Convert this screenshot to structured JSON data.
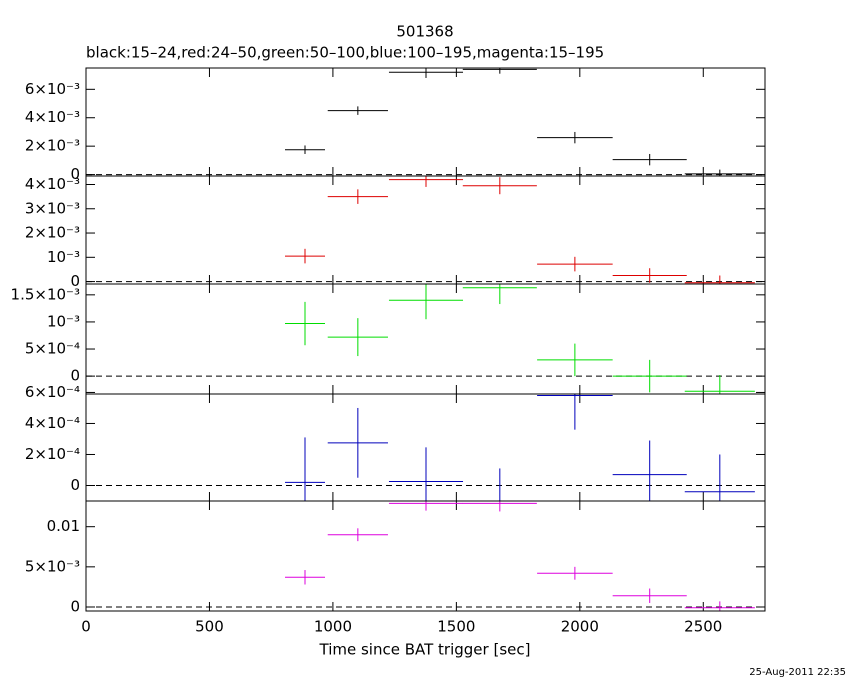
{
  "title": "501368",
  "subtitle": "black:15–24,red:24–50,green:50–100,blue:100–195,magenta:15–195",
  "x_label": "Time since BAT trigger [sec]",
  "timestamp": "25-Aug-2011 22:35",
  "chart_data": [
    {
      "type": "errorbar",
      "color": "#000000",
      "xlim": [
        0,
        2750
      ],
      "xticks": [
        0,
        500,
        1000,
        1500,
        2000,
        2500
      ],
      "x": [
        887,
        1101,
        1377,
        1676,
        1980,
        2283,
        2567
      ],
      "xerr": [
        81,
        122,
        150,
        150,
        153,
        150,
        142
      ],
      "values": [
        0.00175,
        0.0045,
        0.0072,
        0.0074,
        0.0026,
        0.00105,
        5e-05
      ],
      "yerr": [
        0.0003,
        0.0003,
        0.0004,
        0.0003,
        0.0004,
        0.0004,
        0.0003
      ],
      "ylim": [
        -0.0001,
        0.0075
      ],
      "yticks": [
        0,
        {
          "value": 0.002,
          "label": "2×10⁻³"
        },
        {
          "value": 0.004,
          "label": "4×10⁻³"
        },
        {
          "value": 0.006,
          "label": "6×10⁻³"
        }
      ]
    },
    {
      "type": "errorbar",
      "color": "#dd0000",
      "xlim": [
        0,
        2750
      ],
      "xticks": [
        0,
        500,
        1000,
        1500,
        2000,
        2500
      ],
      "x": [
        887,
        1101,
        1377,
        1676,
        1980,
        2283,
        2567
      ],
      "xerr": [
        81,
        122,
        150,
        150,
        153,
        150,
        142
      ],
      "values": [
        0.00105,
        0.0035,
        0.0042,
        0.00395,
        0.00072,
        0.00025,
        -5e-05
      ],
      "yerr": [
        0.0003,
        0.0003,
        0.0003,
        0.00035,
        0.0003,
        0.0003,
        0.0003
      ],
      "ylim": [
        -0.0001,
        0.00435
      ],
      "yticks": [
        0,
        {
          "value": 0.001,
          "label": "10⁻³"
        },
        {
          "value": 0.002,
          "label": "2×10⁻³"
        },
        {
          "value": 0.003,
          "label": "3×10⁻³"
        },
        {
          "value": 0.004,
          "label": "4×10⁻³"
        }
      ]
    },
    {
      "type": "errorbar",
      "color": "#00dd00",
      "xlim": [
        0,
        2750
      ],
      "xticks": [
        0,
        500,
        1000,
        1500,
        2000,
        2500
      ],
      "x": [
        887,
        1101,
        1377,
        1676,
        1980,
        2283,
        2567
      ],
      "xerr": [
        81,
        122,
        150,
        150,
        153,
        150,
        142
      ],
      "values": [
        0.00097,
        0.00072,
        0.0014,
        0.00163,
        0.0003,
        0.0,
        -0.00028
      ],
      "yerr": [
        0.0004,
        0.00035,
        0.00035,
        0.0003,
        0.0003,
        0.0003,
        0.0003
      ],
      "ylim": [
        -0.00033,
        0.0017
      ],
      "yticks": [
        0,
        {
          "value": 0.0005,
          "label": "5×10⁻⁴"
        },
        {
          "value": 0.001,
          "label": "10⁻³"
        },
        {
          "value": 0.0015,
          "label": "1.5×10⁻³"
        }
      ]
    },
    {
      "type": "errorbar",
      "color": "#0000bb",
      "xlim": [
        0,
        2750
      ],
      "xticks": [
        0,
        500,
        1000,
        1500,
        2000,
        2500
      ],
      "x": [
        887,
        1101,
        1377,
        1676,
        1980,
        2283,
        2567
      ],
      "xerr": [
        81,
        122,
        150,
        150,
        153,
        150,
        142
      ],
      "values": [
        2e-05,
        0.000275,
        2.6e-05,
        -0.0001,
        0.00058,
        7e-05,
        -4e-05
      ],
      "yerr": [
        0.00029,
        0.000225,
        0.00022,
        0.00021,
        0.00022,
        0.00022,
        0.00024
      ],
      "ylim": [
        -0.0001,
        0.00059
      ],
      "yticks": [
        0,
        {
          "value": 0.0002,
          "label": "2×10⁻⁴"
        },
        {
          "value": 0.0004,
          "label": "4×10⁻⁴"
        },
        {
          "value": 0.0006,
          "label": "6×10⁻⁴"
        }
      ]
    },
    {
      "type": "errorbar",
      "color": "#dd00dd",
      "xlim": [
        0,
        2750
      ],
      "xticks": [
        0,
        500,
        1000,
        1500,
        2000,
        2500
      ],
      "x": [
        887,
        1101,
        1377,
        1676,
        1980,
        2283,
        2567
      ],
      "xerr": [
        81,
        122,
        150,
        150,
        153,
        150,
        142
      ],
      "values": [
        0.0037,
        0.009,
        0.0129,
        0.0129,
        0.0042,
        0.0014,
        -0.0001
      ],
      "yerr": [
        0.0009,
        0.0008,
        0.0009,
        0.001,
        0.0008,
        0.0009,
        0.0008
      ],
      "ylim": [
        -0.0005,
        0.0132
      ],
      "yticks": [
        0,
        {
          "value": 0.005,
          "label": "5×10⁻³"
        },
        0.01
      ]
    }
  ]
}
